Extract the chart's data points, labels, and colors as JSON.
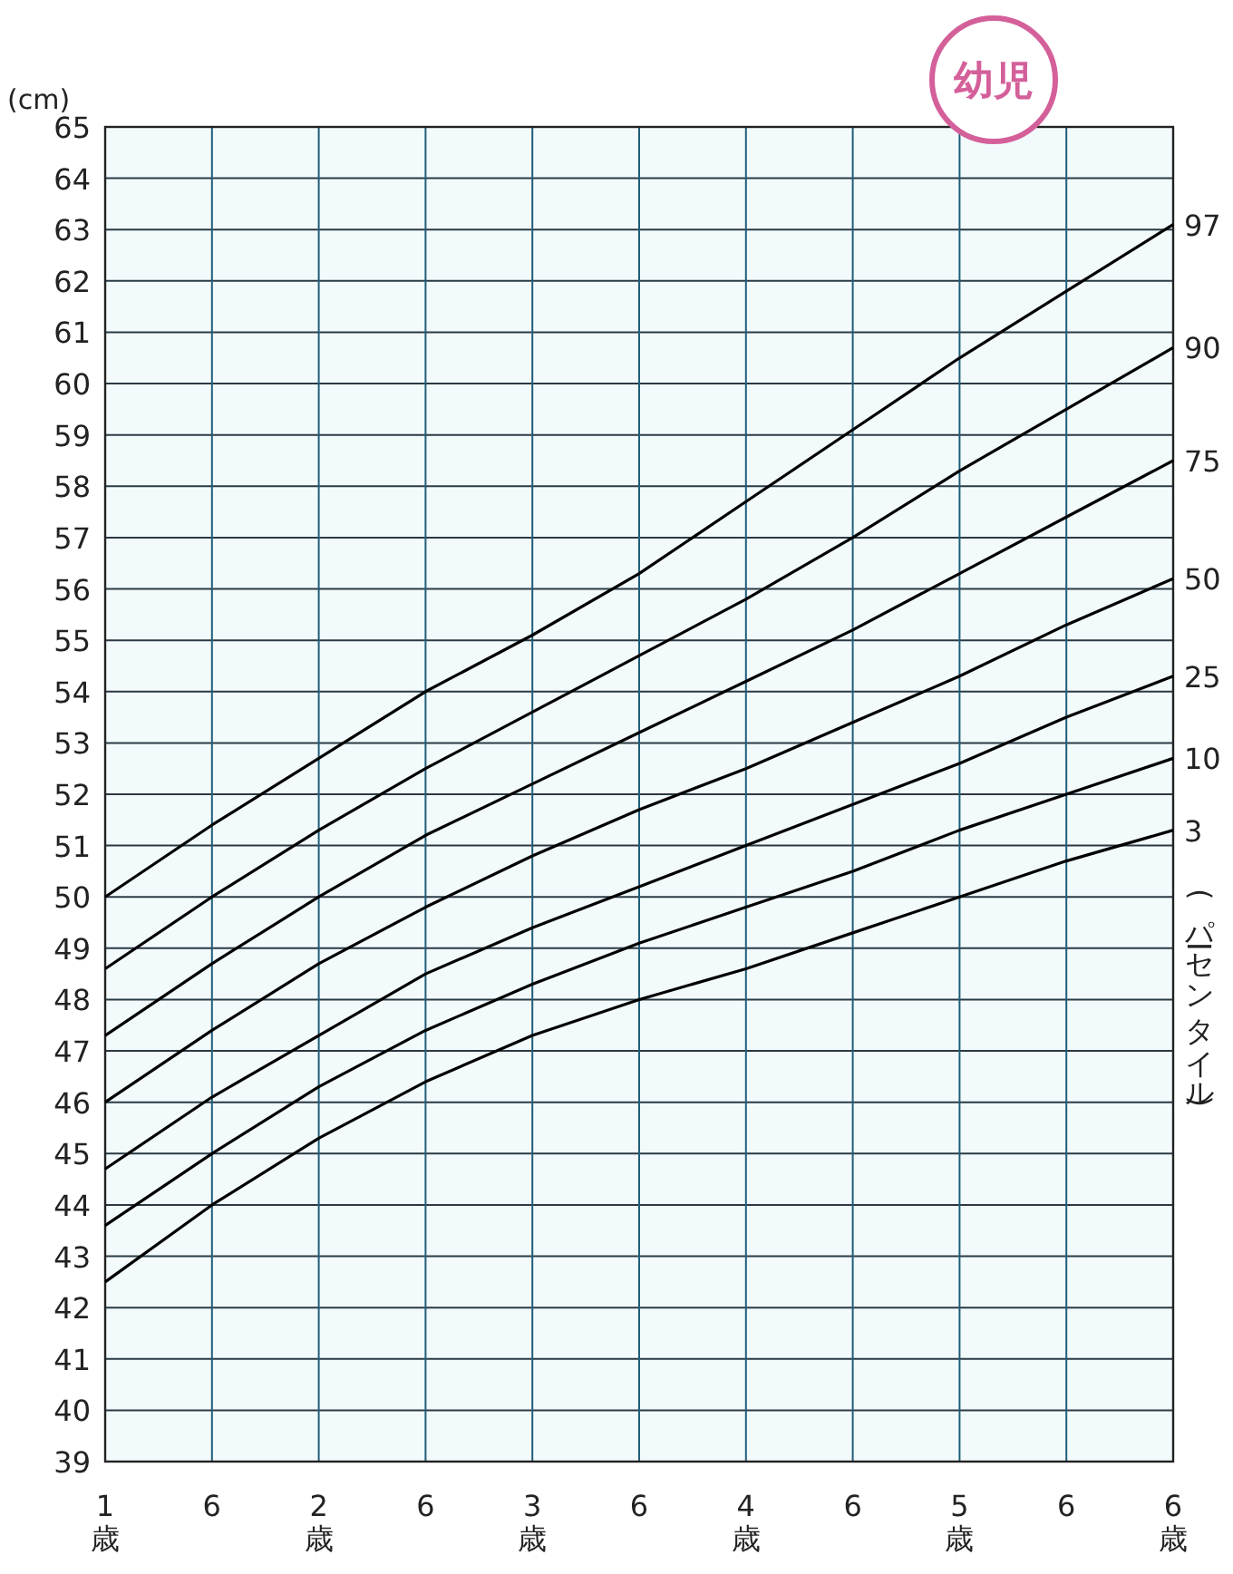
{
  "chart_data": {
    "type": "line",
    "title": "幼児",
    "ylabel": "(cm)",
    "categories": [
      "1\n歳",
      "6",
      "2\n歳",
      "6",
      "3\n歳",
      "6",
      "4\n歳",
      "6",
      "5\n歳",
      "6",
      "6\n歳"
    ],
    "series": [
      {
        "name": "97",
        "color": "#000000",
        "values": [
          50.0,
          51.4,
          52.7,
          54.0,
          55.1,
          56.3,
          57.7,
          59.1,
          60.5,
          61.8,
          63.1
        ]
      },
      {
        "name": "90",
        "color": "#000000",
        "values": [
          48.6,
          50.0,
          51.3,
          52.5,
          53.6,
          54.7,
          55.8,
          57.0,
          58.3,
          59.5,
          60.7
        ]
      },
      {
        "name": "75",
        "color": "#000000",
        "values": [
          47.3,
          48.7,
          50.0,
          51.2,
          52.2,
          53.2,
          54.2,
          55.2,
          56.3,
          57.4,
          58.5
        ]
      },
      {
        "name": "50",
        "color": "#000000",
        "values": [
          46.0,
          47.4,
          48.7,
          49.8,
          50.8,
          51.7,
          52.5,
          53.4,
          54.3,
          55.3,
          56.2
        ]
      },
      {
        "name": "25",
        "color": "#000000",
        "values": [
          44.7,
          46.1,
          47.3,
          48.5,
          49.4,
          50.2,
          51.0,
          51.8,
          52.6,
          53.5,
          54.3
        ]
      },
      {
        "name": "10",
        "color": "#000000",
        "values": [
          43.6,
          45.0,
          46.3,
          47.4,
          48.3,
          49.1,
          49.8,
          50.5,
          51.3,
          52.0,
          52.7
        ]
      },
      {
        "name": "3",
        "color": "#000000",
        "values": [
          42.5,
          44.0,
          45.3,
          46.4,
          47.3,
          48.0,
          48.6,
          49.3,
          50.0,
          50.7,
          51.3
        ]
      }
    ],
    "ylim": [
      39,
      65
    ],
    "yticks": [
      39,
      40,
      41,
      42,
      43,
      44,
      45,
      46,
      47,
      48,
      49,
      50,
      51,
      52,
      53,
      54,
      55,
      56,
      57,
      58,
      59,
      60,
      61,
      62,
      63,
      64,
      65
    ],
    "grid": true,
    "annotations": [
      "(パーセンタイル)"
    ]
  }
}
